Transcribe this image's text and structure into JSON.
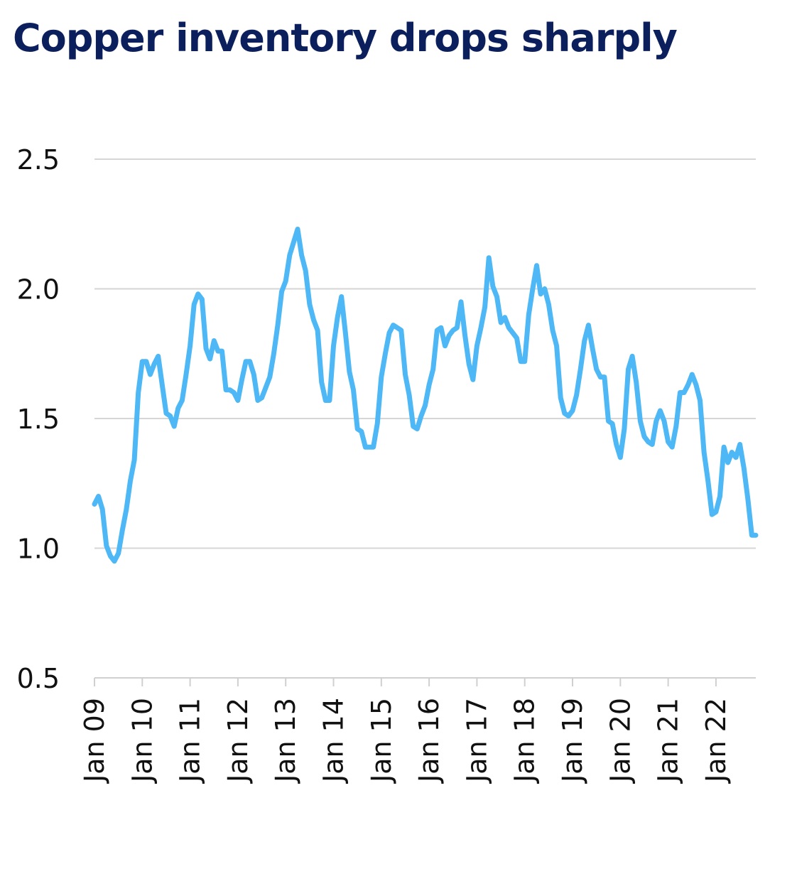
{
  "chart_data": {
    "type": "line",
    "title": "Copper inventory drops sharply",
    "xlabel": "",
    "ylabel": "",
    "ylim": [
      0.5,
      2.5
    ],
    "y_ticks": [
      "0.5",
      "1.0",
      "1.5",
      "2.0",
      "2.5"
    ],
    "y_tick_values": [
      0.5,
      1.0,
      1.5,
      2.0,
      2.5
    ],
    "x_tick_labels": [
      "Jan 09",
      "Jan 10",
      "Jan 11",
      "Jan 12",
      "Jan 13",
      "Jan 14",
      "Jan 15",
      "Jan 16",
      "Jan 17",
      "Jan 18",
      "Jan 19",
      "Jan 20",
      "Jan 21",
      "Jan 22"
    ],
    "x_range_months": [
      0,
      166
    ],
    "grid": true,
    "legend": "none",
    "colors": {
      "series": "#4db8f5",
      "title": "#0b1f5c"
    },
    "series": [
      {
        "name": "Copper inventory",
        "x_months": [
          0,
          1,
          2,
          3,
          4,
          5,
          6,
          7,
          8,
          9,
          10,
          11,
          12,
          13,
          14,
          15,
          16,
          17,
          18,
          19,
          20,
          21,
          22,
          23,
          24,
          25,
          26,
          27,
          28,
          29,
          30,
          31,
          32,
          33,
          34,
          35,
          36,
          37,
          38,
          39,
          40,
          41,
          42,
          43,
          44,
          45,
          46,
          47,
          48,
          49,
          50,
          51,
          52,
          53,
          54,
          55,
          56,
          57,
          58,
          59,
          60,
          61,
          62,
          63,
          64,
          65,
          66,
          67,
          68,
          69,
          70,
          71,
          72,
          73,
          74,
          75,
          76,
          77,
          78,
          79,
          80,
          81,
          82,
          83,
          84,
          85,
          86,
          87,
          88,
          89,
          90,
          91,
          92,
          93,
          94,
          95,
          96,
          97,
          98,
          99,
          100,
          101,
          102,
          103,
          104,
          105,
          106,
          107,
          108,
          109,
          110,
          111,
          112,
          113,
          114,
          115,
          116,
          117,
          118,
          119,
          120,
          121,
          122,
          123,
          124,
          125,
          126,
          127,
          128,
          129,
          130,
          131,
          132,
          133,
          134,
          135,
          136,
          137,
          138,
          139,
          140,
          141,
          142,
          143,
          144,
          145,
          146,
          147,
          148,
          149,
          150,
          151,
          152,
          153,
          154,
          155,
          156,
          157,
          158,
          159,
          160,
          161,
          162,
          163,
          164,
          165,
          166
        ],
        "values": [
          1.17,
          1.2,
          1.15,
          1.01,
          0.97,
          0.95,
          0.98,
          1.07,
          1.15,
          1.26,
          1.34,
          1.6,
          1.72,
          1.72,
          1.67,
          1.71,
          1.74,
          1.63,
          1.52,
          1.51,
          1.47,
          1.54,
          1.57,
          1.67,
          1.78,
          1.94,
          1.98,
          1.96,
          1.77,
          1.73,
          1.8,
          1.76,
          1.76,
          1.61,
          1.61,
          1.6,
          1.57,
          1.65,
          1.72,
          1.72,
          1.67,
          1.57,
          1.58,
          1.62,
          1.66,
          1.75,
          1.86,
          1.99,
          2.03,
          2.13,
          2.18,
          2.23,
          2.13,
          2.07,
          1.94,
          1.88,
          1.84,
          1.64,
          1.57,
          1.57,
          1.78,
          1.89,
          1.97,
          1.83,
          1.68,
          1.61,
          1.46,
          1.45,
          1.39,
          1.39,
          1.39,
          1.48,
          1.66,
          1.75,
          1.83,
          1.86,
          1.85,
          1.84,
          1.67,
          1.59,
          1.47,
          1.46,
          1.51,
          1.55,
          1.63,
          1.69,
          1.84,
          1.85,
          1.78,
          1.82,
          1.84,
          1.85,
          1.95,
          1.82,
          1.71,
          1.65,
          1.78,
          1.85,
          1.93,
          2.12,
          2.01,
          1.97,
          1.87,
          1.89,
          1.85,
          1.83,
          1.81,
          1.72,
          1.72,
          1.9,
          2.0,
          2.09,
          1.98,
          2.0,
          1.94,
          1.84,
          1.78,
          1.58,
          1.52,
          1.51,
          1.53,
          1.59,
          1.69,
          1.8,
          1.86,
          1.77,
          1.69,
          1.66,
          1.66,
          1.49,
          1.48,
          1.4,
          1.35,
          1.46,
          1.69,
          1.74,
          1.64,
          1.49,
          1.43,
          1.41,
          1.4,
          1.49,
          1.53,
          1.49,
          1.41,
          1.39,
          1.47,
          1.6,
          1.6,
          1.63,
          1.67,
          1.63,
          1.57,
          1.37,
          1.26,
          1.13,
          1.14,
          1.2,
          1.39,
          1.33,
          1.37,
          1.35,
          1.4,
          1.31,
          1.19,
          1.05,
          1.05
        ]
      }
    ]
  }
}
